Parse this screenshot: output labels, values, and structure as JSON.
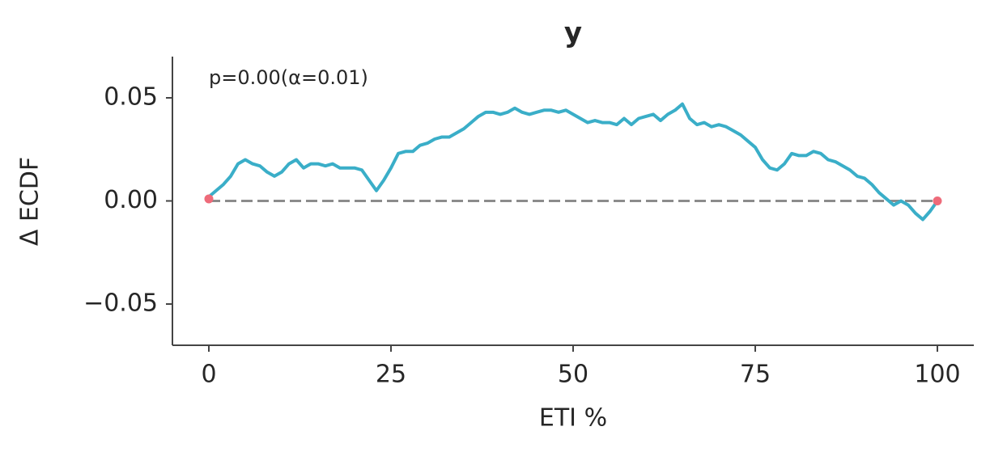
{
  "chart_data": {
    "type": "line",
    "title": "y",
    "xlabel": "ETI %",
    "ylabel": "Δ ECDF",
    "annotation": "p=0.00(α=0.01)",
    "xlim": [
      -5,
      105
    ],
    "xticks": [
      0,
      25,
      50,
      75,
      100
    ],
    "ylim": [
      -0.07,
      0.07
    ],
    "yticks": [
      {
        "value": -0.05,
        "label": "−0.05"
      },
      {
        "value": 0,
        "label": "0.00"
      },
      0.05
    ],
    "grid": false,
    "hline": 0,
    "hline_color": "#8c8c8c",
    "series": [
      {
        "color": "#3aaec8",
        "x": [
          0,
          1,
          2,
          3,
          4,
          5,
          6,
          7,
          8,
          9,
          10,
          11,
          12,
          13,
          14,
          15,
          16,
          17,
          18,
          19,
          20,
          21,
          22,
          23,
          24,
          25,
          26,
          27,
          28,
          29,
          30,
          31,
          32,
          33,
          34,
          35,
          36,
          37,
          38,
          39,
          40,
          41,
          42,
          43,
          44,
          45,
          46,
          47,
          48,
          49,
          50,
          51,
          52,
          53,
          54,
          55,
          56,
          57,
          58,
          59,
          60,
          61,
          62,
          63,
          64,
          65,
          66,
          67,
          68,
          69,
          70,
          71,
          72,
          73,
          74,
          75,
          76,
          77,
          78,
          79,
          80,
          81,
          82,
          83,
          84,
          85,
          86,
          87,
          88,
          89,
          90,
          91,
          92,
          93,
          94,
          95,
          96,
          97,
          98,
          99,
          100
        ],
        "values": [
          0.002,
          0.005,
          0.008,
          0.012,
          0.018,
          0.02,
          0.018,
          0.017,
          0.014,
          0.012,
          0.014,
          0.018,
          0.02,
          0.016,
          0.018,
          0.018,
          0.017,
          0.018,
          0.016,
          0.016,
          0.016,
          0.015,
          0.01,
          0.005,
          0.01,
          0.016,
          0.023,
          0.024,
          0.024,
          0.027,
          0.028,
          0.03,
          0.031,
          0.031,
          0.033,
          0.035,
          0.038,
          0.041,
          0.043,
          0.043,
          0.042,
          0.043,
          0.045,
          0.043,
          0.042,
          0.043,
          0.044,
          0.044,
          0.043,
          0.044,
          0.042,
          0.04,
          0.038,
          0.039,
          0.038,
          0.038,
          0.037,
          0.04,
          0.037,
          0.04,
          0.041,
          0.042,
          0.039,
          0.042,
          0.044,
          0.047,
          0.04,
          0.037,
          0.038,
          0.036,
          0.037,
          0.036,
          0.034,
          0.032,
          0.029,
          0.026,
          0.02,
          0.016,
          0.015,
          0.018,
          0.023,
          0.022,
          0.022,
          0.024,
          0.023,
          0.02,
          0.019,
          0.017,
          0.015,
          0.012,
          0.011,
          0.008,
          0.004,
          0.001,
          -0.002,
          0.0,
          -0.002,
          -0.006,
          -0.009,
          -0.005,
          0.0
        ]
      }
    ],
    "markers": {
      "color": "#ee6b7a",
      "x": [
        0,
        100
      ],
      "values": [
        0.001,
        0
      ]
    }
  }
}
